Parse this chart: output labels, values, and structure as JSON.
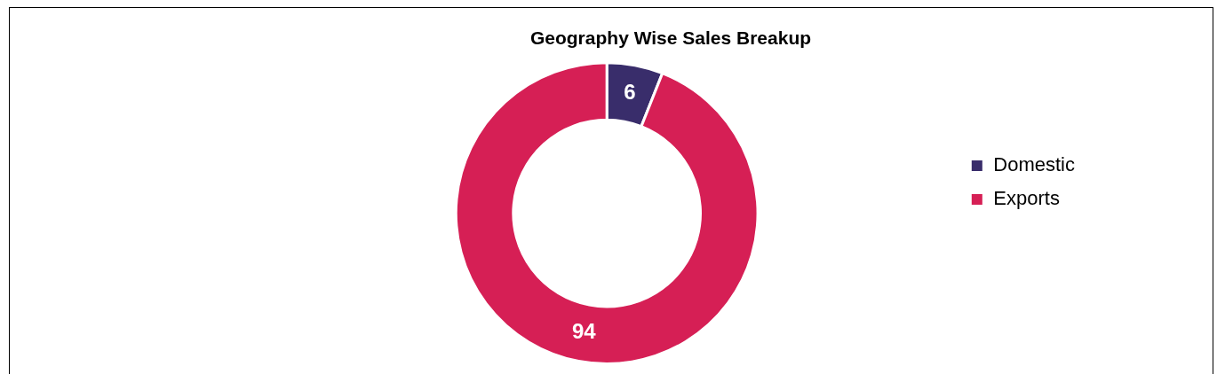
{
  "chart_data": {
    "type": "donut",
    "title": "Geography Wise Sales Breakup",
    "categories": [
      "Domestic",
      "Exports"
    ],
    "values": [
      6,
      94
    ],
    "colors": [
      "#392d6b",
      "#d61f55"
    ],
    "data_labels": true,
    "legend": "right"
  }
}
